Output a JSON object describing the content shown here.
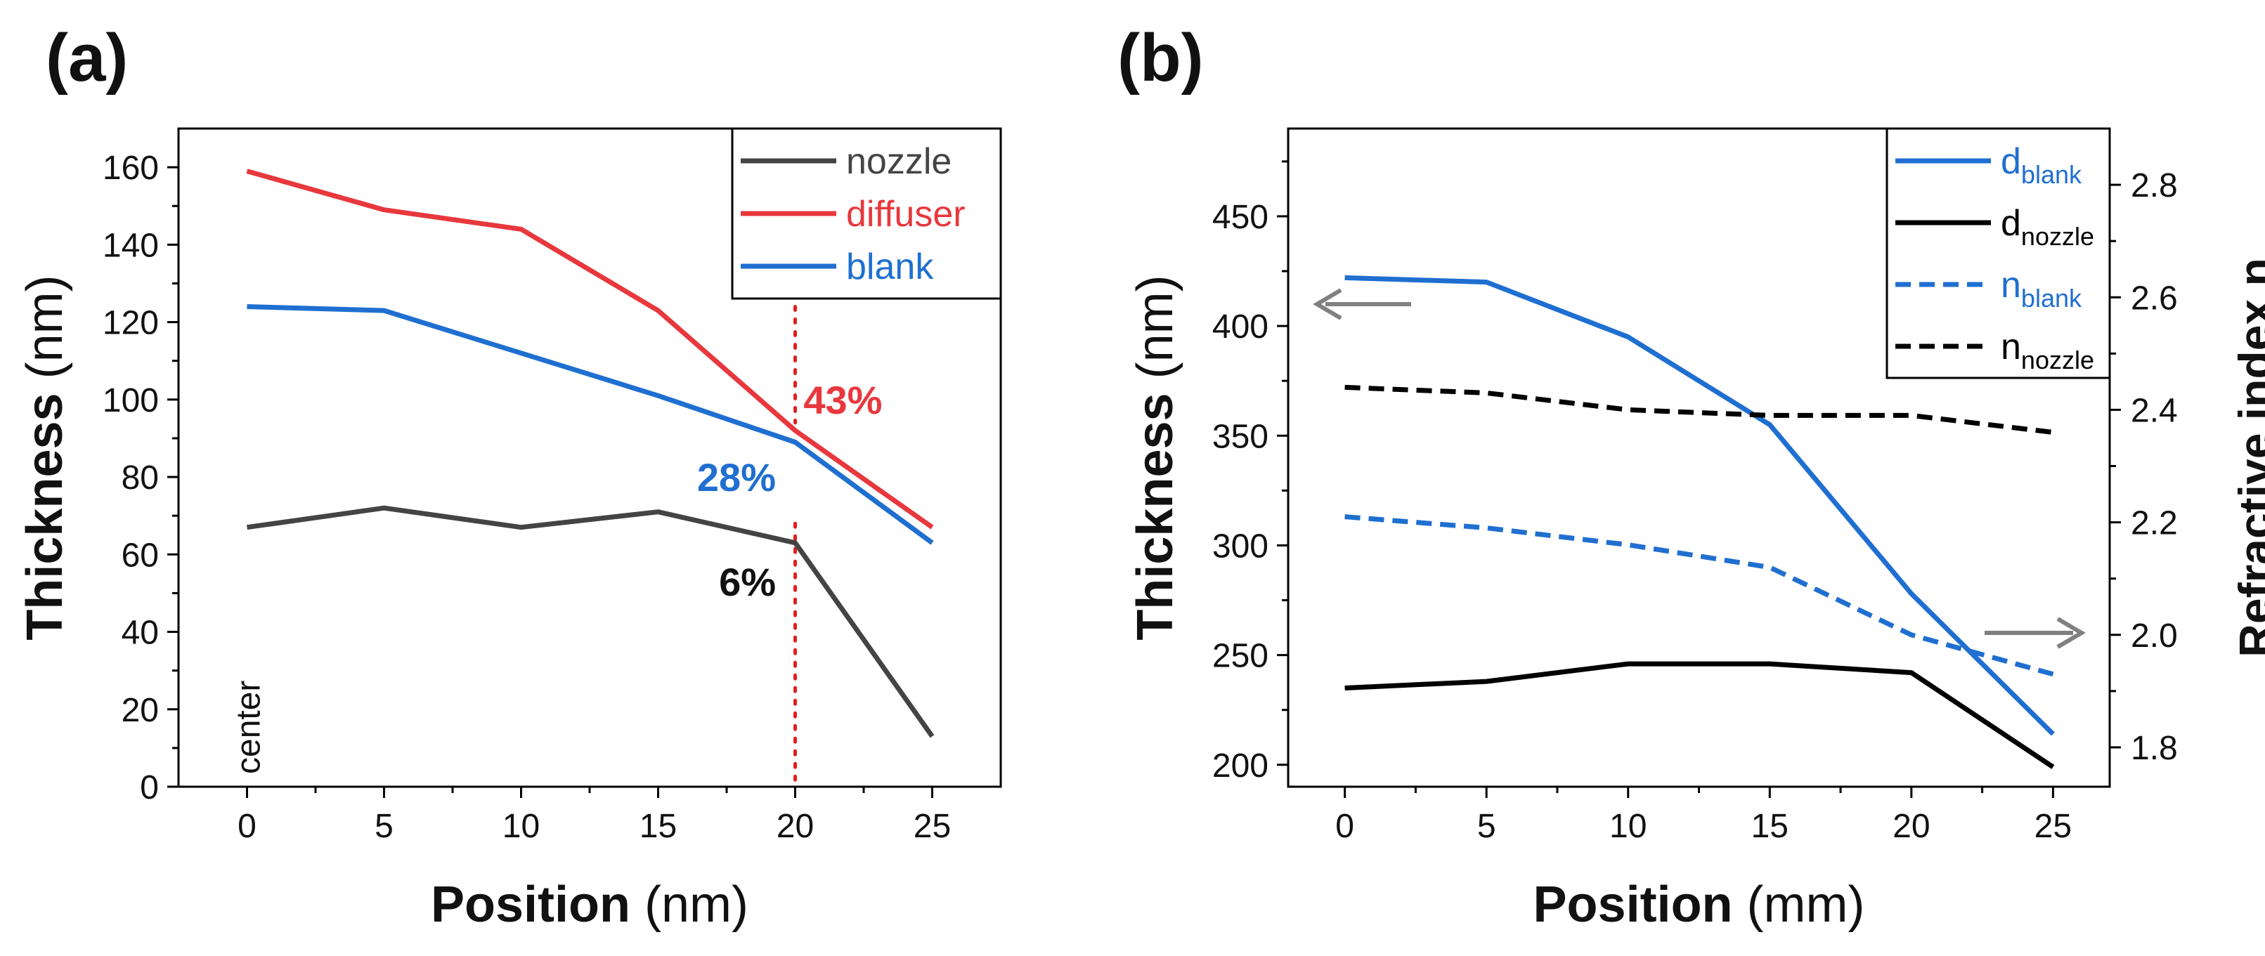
{
  "chart_data": [
    {
      "panel_label": "(a)",
      "type": "line",
      "xlabel_bold": "Position",
      "xlabel_unit": "(nm)",
      "ylabel_bold": "Thickness",
      "ylabel_unit": "(nm)",
      "xlim": [
        -2.5,
        27.5
      ],
      "ylim": [
        0,
        170
      ],
      "x_ticks": [
        0,
        5,
        10,
        15,
        20,
        25
      ],
      "y_ticks": [
        0,
        20,
        40,
        60,
        80,
        100,
        120,
        140,
        160
      ],
      "x": [
        0,
        5,
        10,
        15,
        20,
        25
      ],
      "series": [
        {
          "name": "nozzle",
          "color": "#444444",
          "style": "solid",
          "values": [
            67,
            72,
            67,
            71,
            63,
            13
          ]
        },
        {
          "name": "diffuser",
          "color": "#e8383d",
          "style": "solid",
          "values": [
            159,
            149,
            144,
            123,
            92,
            67
          ]
        },
        {
          "name": "blank",
          "color": "#1f6fd1",
          "style": "solid",
          "values": [
            124,
            123,
            112,
            101,
            89,
            63
          ]
        }
      ],
      "legend_position": "top-right",
      "vline": {
        "x": 20,
        "color": "#e02020",
        "style": "dotted"
      },
      "annotations": [
        {
          "text": "43%",
          "color": "#e8383d",
          "x": 20.1,
          "y": 100,
          "anchor": "start"
        },
        {
          "text": "28%",
          "color": "#1f6fd1",
          "x": 19.5,
          "y": 80,
          "anchor": "end"
        },
        {
          "text": "6%",
          "color": "#111111",
          "x": 19.5,
          "y": 53,
          "anchor": "end"
        },
        {
          "text": "center",
          "color": "#111111",
          "x": 0,
          "y": 13,
          "anchor": "middle",
          "rotated": true
        }
      ]
    },
    {
      "panel_label": "(b)",
      "type": "line",
      "xlabel_bold": "Position",
      "xlabel_unit": "(mm)",
      "ylabel_bold": "Thickness",
      "ylabel_unit": "(nm)",
      "y2label": "Refractive index n",
      "xlim": [
        -2,
        27
      ],
      "ylim": [
        190,
        490
      ],
      "y2lim": [
        1.73,
        2.9
      ],
      "x_ticks": [
        0,
        5,
        10,
        15,
        20,
        25
      ],
      "y_ticks": [
        200,
        250,
        300,
        350,
        400,
        450
      ],
      "y2_ticks": [
        1.8,
        2.0,
        2.2,
        2.4,
        2.6,
        2.8
      ],
      "x": [
        0,
        5,
        10,
        15,
        20,
        25
      ],
      "series": [
        {
          "name": "d",
          "subscript": "blank",
          "axis": "left",
          "color": "#1f6fd1",
          "style": "solid",
          "values": [
            422,
            420,
            395,
            355,
            278,
            214
          ]
        },
        {
          "name": "d",
          "subscript": "nozzle",
          "axis": "left",
          "color": "#000000",
          "style": "solid",
          "values": [
            235,
            238,
            246,
            246,
            242,
            199
          ]
        },
        {
          "name": "n",
          "subscript": "blank",
          "axis": "right",
          "color": "#1f6fd1",
          "style": "dashed",
          "values": [
            2.21,
            2.19,
            2.16,
            2.12,
            2.0,
            1.93
          ]
        },
        {
          "name": "n",
          "subscript": "nozzle",
          "axis": "right",
          "color": "#000000",
          "style": "dashed",
          "values": [
            2.44,
            2.43,
            2.4,
            2.39,
            2.39,
            2.36
          ]
        }
      ],
      "legend_position": "top-right",
      "arrows": [
        {
          "direction": "left",
          "axis": "left",
          "color": "#808080"
        },
        {
          "direction": "right",
          "axis": "right",
          "color": "#808080"
        }
      ]
    }
  ]
}
